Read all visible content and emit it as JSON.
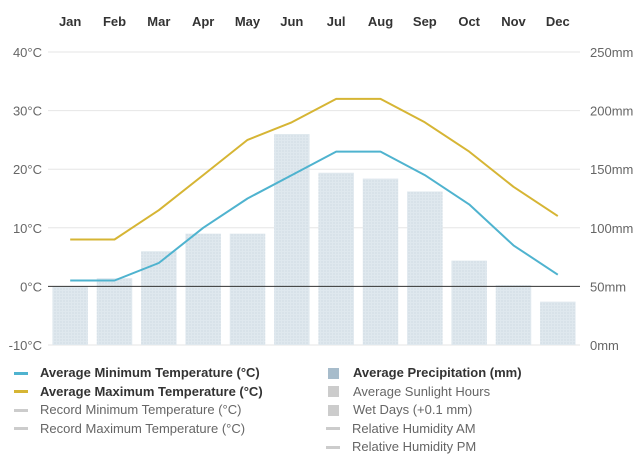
{
  "chart_data": {
    "type": "bar+line",
    "categories": [
      "Jan",
      "Feb",
      "Mar",
      "Apr",
      "May",
      "Jun",
      "Jul",
      "Aug",
      "Sep",
      "Oct",
      "Nov",
      "Dec"
    ],
    "y_left": {
      "unit": "°C",
      "ticks": [
        "40°C",
        "30°C",
        "20°C",
        "10°C",
        "0°C",
        "-10°C"
      ],
      "range": [
        -10,
        40
      ]
    },
    "y_right": {
      "unit": "mm",
      "ticks": [
        "250mm",
        "200mm",
        "150mm",
        "100mm",
        "50mm",
        "0mm"
      ],
      "range": [
        0,
        250
      ]
    },
    "series": [
      {
        "name": "Average Minimum Temperature (°C)",
        "type": "line",
        "axis": "left",
        "color": "#4fb3cf",
        "values": [
          1,
          1,
          4,
          10,
          15,
          19,
          23,
          23,
          19,
          14,
          7,
          2
        ]
      },
      {
        "name": "Average Maximum Temperature (°C)",
        "type": "line",
        "axis": "left",
        "color": "#d6b534",
        "values": [
          8,
          8,
          13,
          19,
          25,
          28,
          32,
          32,
          28,
          23,
          17,
          12
        ]
      },
      {
        "name": "Average Precipitation (mm)",
        "type": "bar",
        "axis": "right",
        "color": "#d6e0e8",
        "values": [
          50,
          57,
          80,
          95,
          95,
          180,
          147,
          142,
          131,
          72,
          51,
          37
        ]
      }
    ]
  },
  "legend": {
    "left": [
      {
        "label": "Average Minimum Temperature (°C)",
        "color": "#4fb3cf",
        "active": true
      },
      {
        "label": "Average Maximum Temperature (°C)",
        "color": "#d6b534",
        "active": true
      },
      {
        "label": "Record Minimum Temperature (°C)",
        "color": "#cccccc",
        "active": false
      },
      {
        "label": "Record Maximum Temperature (°C)",
        "color": "#cccccc",
        "active": false
      }
    ],
    "right": [
      {
        "label": "Average Precipitation (mm)",
        "color": "#a7bccb",
        "active": true,
        "box": true
      },
      {
        "label": "Average Sunlight Hours",
        "color": "#cccccc",
        "active": false,
        "box": true
      },
      {
        "label": "Wet Days (+0.1 mm)",
        "color": "#cccccc",
        "active": false,
        "box": true
      },
      {
        "label": "Relative Humidity AM",
        "color": "#cccccc",
        "active": false,
        "box": false
      },
      {
        "label": "Relative Humidity PM",
        "color": "#cccccc",
        "active": false,
        "box": false
      }
    ]
  }
}
